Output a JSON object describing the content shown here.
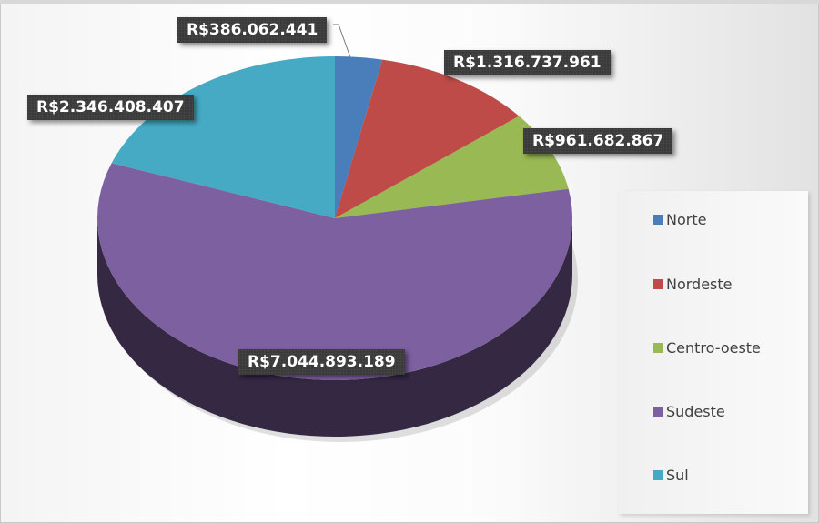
{
  "chart_data": {
    "type": "pie",
    "style": "3d",
    "legend_position": "right",
    "categories": [
      "Norte",
      "Nordeste",
      "Centro-oeste",
      "Sudeste",
      "Sul"
    ],
    "values": [
      386062441,
      1316737961,
      961682867,
      7044893189,
      2346408407
    ],
    "data_labels": [
      "R$386.062.441",
      "R$1.316.737.961",
      "R$961.682.867",
      "R$7.044.893.189",
      "R$2.346.408.407"
    ],
    "colors": [
      "#4a7ebb",
      "#be4b48",
      "#98b954",
      "#7d60a0",
      "#46aac5"
    ]
  }
}
